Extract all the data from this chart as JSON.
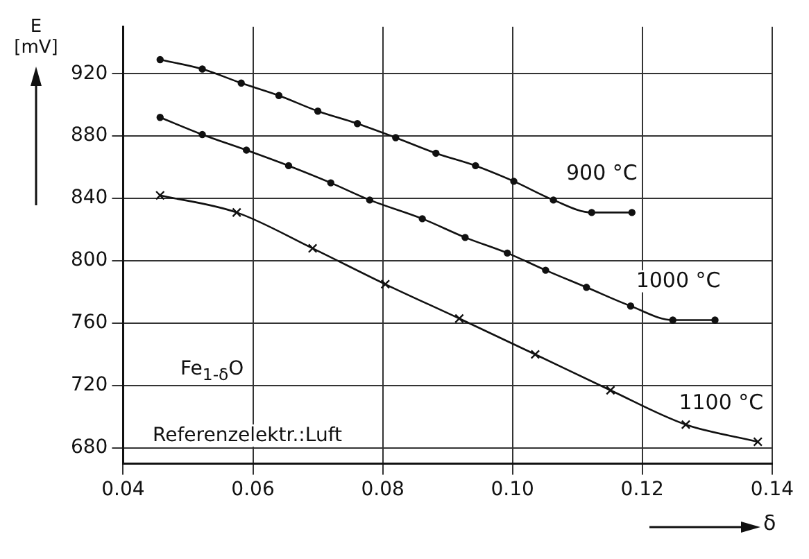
{
  "chart_data": {
    "type": "line",
    "xlabel": "δ",
    "ylabel": "E [mV]",
    "xlim": [
      0.04,
      0.14
    ],
    "xticks": [
      {
        "value": 0.04,
        "label": "0.04"
      },
      {
        "value": 0.06,
        "label": "0.06"
      },
      {
        "value": 0.08,
        "label": "0.08"
      },
      {
        "value": 0.1,
        "label": "0.10"
      },
      {
        "value": 0.12,
        "label": "0.12"
      },
      {
        "value": 0.14,
        "label": "0.14"
      }
    ],
    "ylim": [
      670,
      950
    ],
    "yticks": [
      680,
      720,
      760,
      800,
      840,
      880,
      920
    ],
    "grid": true,
    "legend": false,
    "line_style": "solid",
    "annotations": [
      "Fe$_{1-δ}$O",
      "Referenzelektr.:Luft"
    ],
    "series": [
      {
        "name": "900 °C",
        "color": "#111111",
        "marker": "circle",
        "x": [
          0.0457,
          0.0522,
          0.0582,
          0.064,
          0.07,
          0.0761,
          0.082,
          0.0882,
          0.0943,
          0.1002,
          0.1063,
          0.1122,
          0.1184
        ],
        "values": [
          929,
          923,
          914,
          906,
          896,
          888,
          879,
          869,
          861,
          851,
          839,
          831,
          831
        ]
      },
      {
        "name": "1000 °C",
        "color": "#111111",
        "marker": "circle",
        "x": [
          0.0457,
          0.0522,
          0.059,
          0.0655,
          0.072,
          0.078,
          0.0861,
          0.0927,
          0.0992,
          0.1051,
          0.1114,
          0.1182,
          0.1247,
          0.1312
        ],
        "values": [
          892,
          881,
          871,
          861,
          850,
          839,
          827,
          815,
          805,
          794,
          783,
          771,
          762,
          762
        ]
      },
      {
        "name": "1100 °C",
        "color": "#111111",
        "marker": "cross",
        "x": [
          0.0457,
          0.0575,
          0.0692,
          0.0804,
          0.0918,
          0.1035,
          0.1151,
          0.1267,
          0.1378
        ],
        "values": [
          842,
          831,
          808,
          785,
          763,
          740,
          717,
          695,
          684
        ]
      }
    ]
  }
}
